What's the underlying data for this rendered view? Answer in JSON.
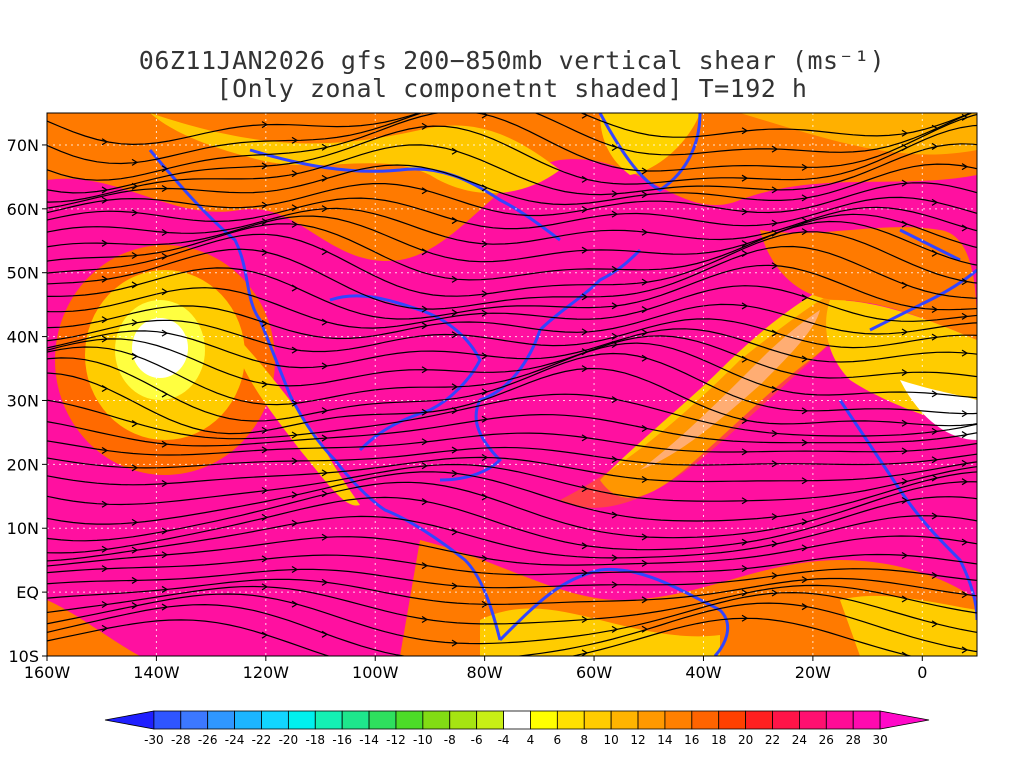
{
  "title": {
    "line1": "06Z11JAN2026 gfs 200−850mb vertical shear (ms⁻¹)",
    "line2": "[Only zonal componetnt shaded] T=192 h"
  },
  "map": {
    "extent": {
      "lon_min": -160,
      "lon_max": 10,
      "lat_min": -10,
      "lat_max": 75
    },
    "lat_ticks": [
      {
        "lat": 70,
        "label": "70N"
      },
      {
        "lat": 60,
        "label": "60N"
      },
      {
        "lat": 50,
        "label": "50N"
      },
      {
        "lat": 40,
        "label": "40N"
      },
      {
        "lat": 30,
        "label": "30N"
      },
      {
        "lat": 20,
        "label": "20N"
      },
      {
        "lat": 10,
        "label": "10N"
      },
      {
        "lat": 0,
        "label": "EQ"
      },
      {
        "lat": -10,
        "label": "10S"
      }
    ],
    "lon_ticks": [
      {
        "lon": -160,
        "label": "160W"
      },
      {
        "lon": -140,
        "label": "140W"
      },
      {
        "lon": -120,
        "label": "120W"
      },
      {
        "lon": -100,
        "label": "100W"
      },
      {
        "lon": -80,
        "label": "80W"
      },
      {
        "lon": -60,
        "label": "60W"
      },
      {
        "lon": -40,
        "label": "40W"
      },
      {
        "lon": -20,
        "label": "20W"
      },
      {
        "lon": 0,
        "label": "0"
      }
    ],
    "coastline_color": "#3344ff",
    "streamline_color": "#000000"
  },
  "colorbar": {
    "labels": [
      "-30",
      "-28",
      "-26",
      "-24",
      "-22",
      "-20",
      "-18",
      "-16",
      "-14",
      "-12",
      "-10",
      "-8",
      "-6",
      "-4",
      "4",
      "6",
      "8",
      "10",
      "12",
      "14",
      "16",
      "18",
      "20",
      "22",
      "24",
      "26",
      "28",
      "30"
    ],
    "colors": [
      "#1f1fff",
      "#2f55ff",
      "#3c78ff",
      "#2f97ff",
      "#1cb5ff",
      "#12d6ff",
      "#00f0ee",
      "#14f0b4",
      "#1ee68c",
      "#2ee05e",
      "#4cdc28",
      "#82dc14",
      "#a6e412",
      "#c8ef16",
      "#ffffff",
      "#ffff00",
      "#ffe100",
      "#ffcc00",
      "#ffb400",
      "#ff9900",
      "#ff8000",
      "#ff6400",
      "#ff4000",
      "#ff2020",
      "#ff1448",
      "#ff1070",
      "#ff0c96",
      "#ff0aaf",
      "#ff08c8"
    ]
  }
}
